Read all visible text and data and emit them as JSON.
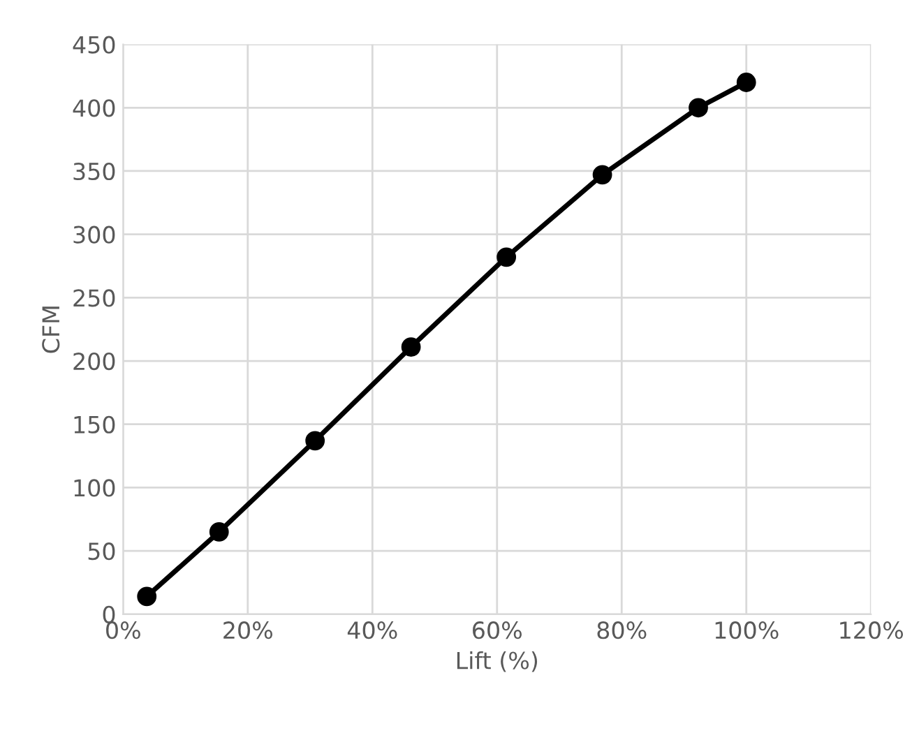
{
  "chart_data": {
    "type": "line",
    "xlabel": "Lift (%)",
    "ylabel": "CFM",
    "x": [
      3.8,
      15.4,
      30.8,
      46.2,
      61.5,
      76.9,
      92.3,
      100
    ],
    "series": [
      {
        "color": "#000000",
        "values": [
          14,
          65,
          137,
          211,
          282,
          347,
          400,
          420
        ]
      }
    ],
    "xlim": [
      0,
      120
    ],
    "xticks": [
      {
        "value": 0,
        "label": "0%"
      },
      {
        "value": 20,
        "label": "20%"
      },
      {
        "value": 40,
        "label": "40%"
      },
      {
        "value": 60,
        "label": "60%"
      },
      {
        "value": 80,
        "label": "80%"
      },
      {
        "value": 100,
        "label": "100%"
      },
      {
        "value": 120,
        "label": "120%"
      }
    ],
    "ylim": [
      0,
      450
    ],
    "yticks": [
      0,
      50,
      100,
      150,
      200,
      250,
      300,
      350,
      400,
      450
    ],
    "grid": true,
    "marker": "circle",
    "line_style": "solid"
  }
}
